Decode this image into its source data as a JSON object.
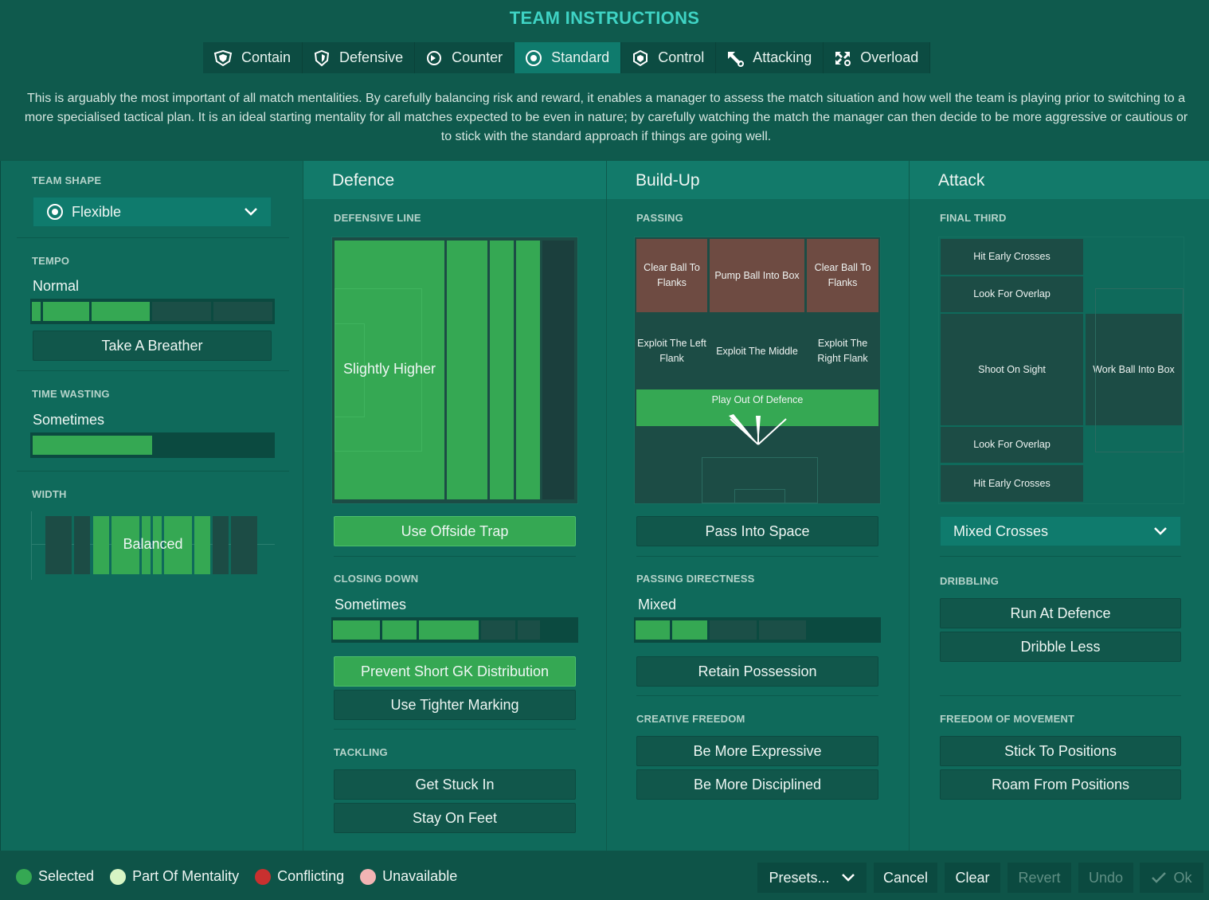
{
  "title": "TEAM INSTRUCTIONS",
  "tabs": [
    {
      "label": "Contain",
      "icon": "contain-shield-icon"
    },
    {
      "label": "Defensive",
      "icon": "defensive-shield-icon"
    },
    {
      "label": "Counter",
      "icon": "counter-arrow-icon"
    },
    {
      "label": "Standard",
      "icon": "standard-target-icon",
      "active": true
    },
    {
      "label": "Control",
      "icon": "control-shield-icon"
    },
    {
      "label": "Attacking",
      "icon": "attacking-arrow-icon"
    },
    {
      "label": "Overload",
      "icon": "overload-arrows-icon"
    }
  ],
  "description": "This is arguably the most important of all match mentalities. By carefully balancing risk and reward, it enables a manager to assess the match situation and how well the team is playing prior to switching to a more specialised tactical plan. It is an ideal starting mentality for all matches expected to be even in nature; by carefully watching the match the manager can then decide to be more aggressive or cautious or to stick with the standard approach if things are going well.",
  "left": {
    "team_shape": {
      "label": "TEAM SHAPE",
      "value": "Flexible"
    },
    "tempo": {
      "label": "TEMPO",
      "value": "Normal",
      "button": "Take A Breather"
    },
    "time_wasting": {
      "label": "TIME WASTING",
      "value": "Sometimes"
    },
    "width": {
      "label": "WIDTH",
      "value": "Balanced"
    }
  },
  "defence": {
    "header": "Defence",
    "defensive_line": {
      "label": "DEFENSIVE LINE",
      "value": "Slightly Higher"
    },
    "offside_button": "Use Offside Trap",
    "closing_down": {
      "label": "CLOSING DOWN",
      "value": "Sometimes"
    },
    "gk_button": "Prevent Short GK Distribution",
    "marking_button": "Use Tighter Marking",
    "tackling": {
      "label": "TACKLING",
      "buttons": [
        "Get Stuck In",
        "Stay On Feet"
      ]
    }
  },
  "buildup": {
    "header": "Build-Up",
    "passing": {
      "label": "PASSING",
      "cells": [
        "Clear Ball To Flanks",
        "Pump Ball Into Box",
        "Clear Ball To Flanks",
        "Exploit The Left Flank",
        "Exploit The Middle",
        "Exploit The Right Flank",
        "Play Out Of Defence"
      ]
    },
    "pass_space_button": "Pass Into Space",
    "directness": {
      "label": "PASSING DIRECTNESS",
      "value": "Mixed"
    },
    "retain_button": "Retain Possession",
    "creative": {
      "label": "CREATIVE FREEDOM",
      "buttons": [
        "Be More Expressive",
        "Be More Disciplined"
      ]
    }
  },
  "attack": {
    "header": "Attack",
    "final_third": {
      "label": "FINAL THIRD",
      "cells": [
        "Hit Early Crosses",
        "Look For Overlap",
        "Shoot On Sight",
        "Work Ball Into Box",
        "Look For Overlap",
        "Hit Early Crosses"
      ]
    },
    "crosses_dropdown": "Mixed Crosses",
    "dribbling": {
      "label": "DRIBBLING",
      "buttons": [
        "Run At Defence",
        "Dribble Less"
      ]
    },
    "freedom": {
      "label": "FREEDOM OF MOVEMENT",
      "buttons": [
        "Stick To Positions",
        "Roam From Positions"
      ]
    }
  },
  "legend": [
    {
      "label": "Selected",
      "color": "#35a853"
    },
    {
      "label": "Part Of Mentality",
      "color": "#d7f5c4"
    },
    {
      "label": "Conflicting",
      "color": "#c8302f"
    },
    {
      "label": "Unavailable",
      "color": "#f2b4b4"
    }
  ],
  "footer": {
    "presets": "Presets...",
    "cancel": "Cancel",
    "clear": "Clear",
    "revert": "Revert",
    "undo": "Undo",
    "ok": "Ok"
  }
}
